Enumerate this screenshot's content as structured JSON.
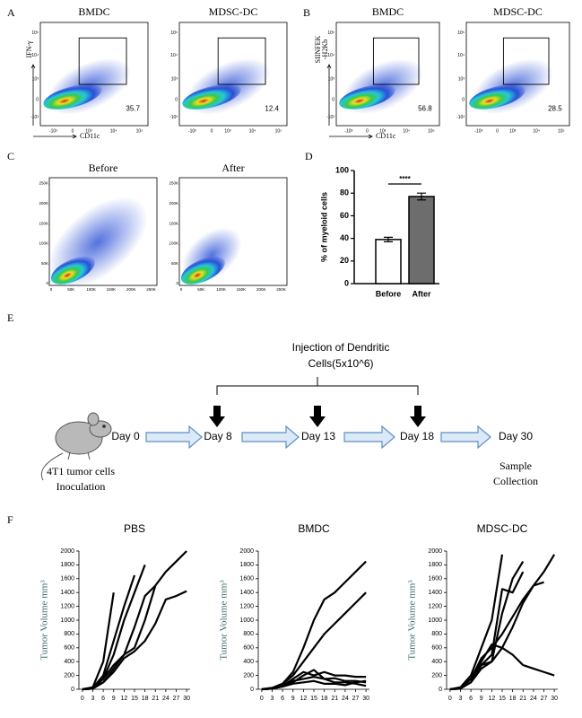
{
  "panel_labels": [
    "A",
    "B",
    "C",
    "D",
    "E",
    "F"
  ],
  "flow_A": {
    "y_label": "IFN-γ",
    "x_label": "CD11c",
    "xticks": [
      "-10³",
      "0",
      "10³",
      "10⁴",
      "10⁵"
    ],
    "yticks": [
      "-10³",
      "0",
      "10³",
      "10⁴",
      "10⁵"
    ],
    "plots": [
      {
        "title": "BMDC",
        "gate_value": 35.7
      },
      {
        "title": "MDSC-DC",
        "gate_value": 12.4
      }
    ]
  },
  "flow_B": {
    "y_label": [
      "SIINFEK",
      "-H2Kb"
    ],
    "x_label": "CD11c",
    "xticks": [
      "-10³",
      "0",
      "10³",
      "10⁴",
      "10⁵"
    ],
    "yticks": [
      "-10³",
      "0",
      "10³",
      "10⁴",
      "10⁵"
    ],
    "plots": [
      {
        "title": "BMDC",
        "gate_value": 56.8
      },
      {
        "title": "MDSC-DC",
        "gate_value": 28.5
      }
    ]
  },
  "flow_C": {
    "ticks": [
      "0",
      "50K",
      "100K",
      "150K",
      "200K",
      "250K"
    ],
    "plots": [
      {
        "title": "Before"
      },
      {
        "title": "After"
      }
    ]
  },
  "timeline": {
    "injection": [
      "Injection of Dendritic",
      "Cells(5x10^6)"
    ],
    "days": [
      "Day 0",
      "Day 8",
      "Day 13",
      "Day 18",
      "Day 30"
    ],
    "start": [
      "4T1 tumor cells",
      "Inoculation"
    ],
    "end": [
      "Sample",
      "Collection"
    ]
  },
  "chart_data": [
    {
      "type": "bar",
      "ylabel": "% of myeloid cells",
      "categories": [
        "Before",
        "After"
      ],
      "values": [
        39,
        77
      ],
      "errors": [
        2,
        3
      ],
      "colors": [
        "#ffffff",
        "#6d6d6d"
      ],
      "ylim": [
        0,
        100
      ],
      "yticks": [
        0,
        20,
        40,
        60,
        80,
        100
      ],
      "annotation": "****"
    },
    {
      "type": "line",
      "title": "PBS",
      "ylabel": "Tumor Volume mm³",
      "x": [
        0,
        3,
        6,
        9,
        12,
        15,
        18,
        21,
        24,
        27,
        30
      ],
      "xlim": [
        -1,
        31
      ],
      "xticks": [
        0,
        3,
        6,
        9,
        12,
        15,
        18,
        21,
        24,
        27,
        30
      ],
      "ylim": [
        0,
        2000
      ],
      "yticks": [
        0,
        200,
        400,
        600,
        800,
        1000,
        1200,
        1400,
        1600,
        1800,
        2000
      ],
      "series": [
        {
          "color": "#000000",
          "values": [
            0,
            30,
            400,
            1400,
            null,
            null,
            null,
            null,
            null,
            null,
            null
          ]
        },
        {
          "color": "#000000",
          "values": [
            0,
            20,
            200,
            700,
            1200,
            1650,
            null,
            null,
            null,
            null,
            null
          ]
        },
        {
          "color": "#000000",
          "values": [
            0,
            10,
            150,
            500,
            1000,
            1400,
            1800,
            null,
            null,
            null,
            null
          ]
        },
        {
          "color": "#000000",
          "values": [
            0,
            20,
            150,
            350,
            500,
            600,
            1000,
            1500,
            null,
            null,
            null
          ]
        },
        {
          "color": "#000000",
          "values": [
            0,
            10,
            100,
            300,
            500,
            900,
            1350,
            1500,
            1700,
            1850,
            2000
          ]
        },
        {
          "color": "#000000",
          "values": [
            0,
            10,
            100,
            250,
            450,
            550,
            700,
            950,
            1300,
            1350,
            1420
          ]
        }
      ]
    },
    {
      "type": "line",
      "title": "BMDC",
      "ylabel": "Tumor Volume mm³",
      "x": [
        0,
        3,
        6,
        9,
        12,
        15,
        18,
        21,
        24,
        27,
        30
      ],
      "xlim": [
        -1,
        31
      ],
      "xticks": [
        0,
        3,
        6,
        9,
        12,
        15,
        18,
        21,
        24,
        27,
        30
      ],
      "ylim": [
        0,
        2000
      ],
      "yticks": [
        0,
        200,
        400,
        600,
        800,
        1000,
        1200,
        1400,
        1600,
        1800,
        2000
      ],
      "series": [
        {
          "color": "#000000",
          "values": [
            0,
            20,
            80,
            250,
            600,
            1000,
            1300,
            1400,
            1550,
            1700,
            1850
          ]
        },
        {
          "color": "#000000",
          "values": [
            0,
            20,
            80,
            200,
            400,
            600,
            800,
            950,
            1100,
            1250,
            1400
          ]
        },
        {
          "color": "#000000",
          "values": [
            0,
            20,
            50,
            150,
            250,
            200,
            250,
            200,
            200,
            180,
            180
          ]
        },
        {
          "color": "#000000",
          "values": [
            0,
            10,
            40,
            100,
            200,
            280,
            150,
            100,
            100,
            80,
            50
          ]
        },
        {
          "color": "#000000",
          "values": [
            0,
            10,
            50,
            120,
            150,
            180,
            150,
            160,
            120,
            120,
            100
          ]
        },
        {
          "color": "#000000",
          "values": [
            0,
            10,
            40,
            80,
            100,
            120,
            80,
            80,
            60,
            100,
            120
          ]
        }
      ]
    },
    {
      "type": "line",
      "title": "MDSC-DC",
      "ylabel": "Tumor Volume mm³",
      "x": [
        0,
        3,
        6,
        9,
        12,
        15,
        18,
        21,
        24,
        27,
        30
      ],
      "xlim": [
        -1,
        31
      ],
      "xticks": [
        0,
        3,
        6,
        9,
        12,
        15,
        18,
        21,
        24,
        27,
        30
      ],
      "ylim": [
        0,
        2000
      ],
      "yticks": [
        0,
        200,
        400,
        600,
        800,
        1000,
        1200,
        1400,
        1600,
        1800,
        2000
      ],
      "series": [
        {
          "color": "#000000",
          "values": [
            0,
            30,
            200,
            600,
            1000,
            1950,
            null,
            null,
            null,
            null,
            null
          ]
        },
        {
          "color": "#000000",
          "values": [
            0,
            20,
            150,
            400,
            650,
            600,
            500,
            350,
            300,
            250,
            200
          ]
        },
        {
          "color": "#000000",
          "values": [
            0,
            20,
            150,
            350,
            500,
            1450,
            1400,
            1700,
            null,
            null,
            null
          ]
        },
        {
          "color": "#000000",
          "values": [
            0,
            20,
            100,
            350,
            400,
            1100,
            1600,
            1850,
            null,
            null,
            null
          ]
        },
        {
          "color": "#000000",
          "values": [
            0,
            10,
            150,
            450,
            600,
            800,
            1050,
            1300,
            1500,
            1700,
            1950
          ]
        },
        {
          "color": "#000000",
          "values": [
            0,
            10,
            100,
            300,
            400,
            600,
            900,
            1250,
            1500,
            1550,
            null
          ]
        }
      ]
    }
  ]
}
